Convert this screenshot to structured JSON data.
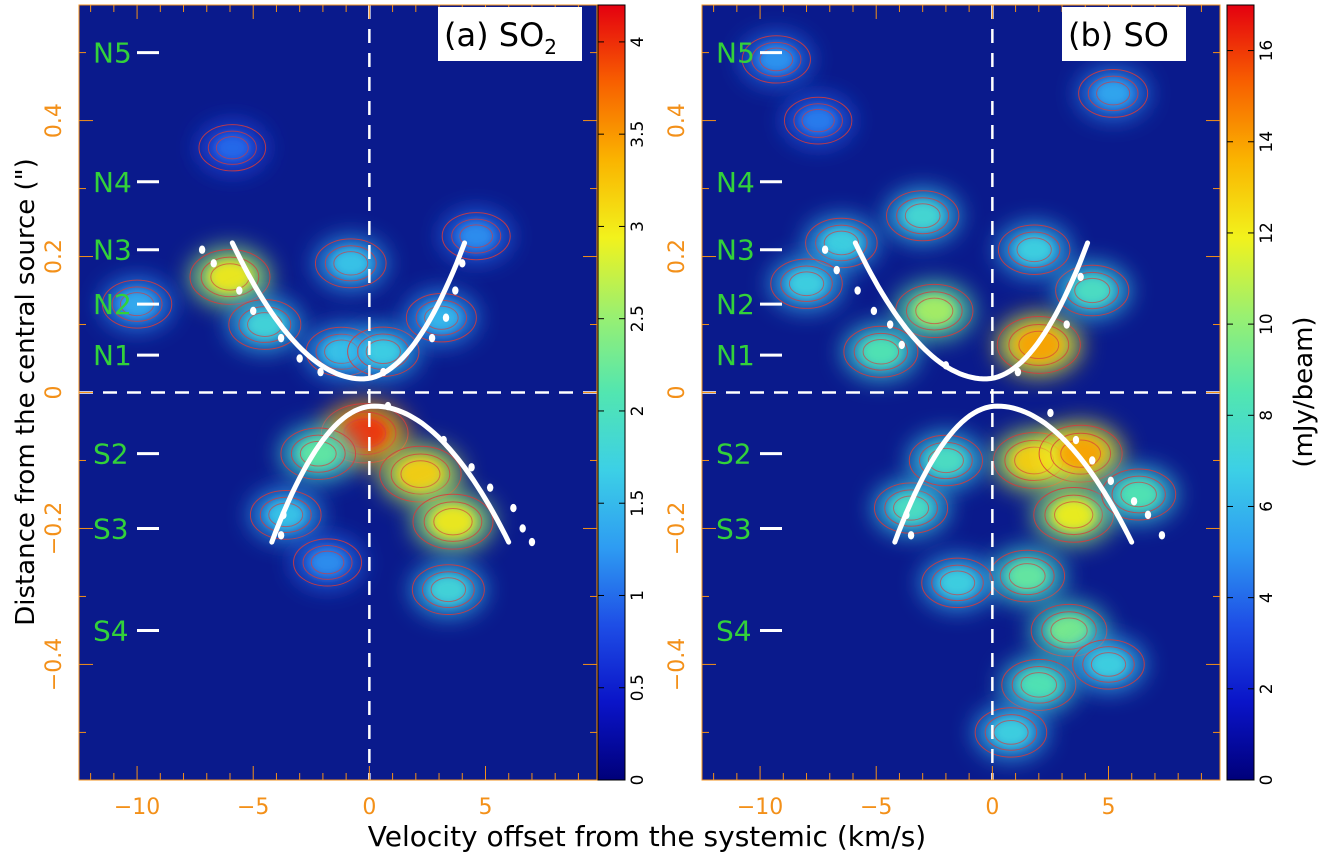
{
  "chart_data": {
    "type": "heatmap",
    "xlabel": "Velocity offset from the systemic (km/s)",
    "ylabel": "Distance from the central source (\")",
    "xlim": [
      -12.5,
      9.8
    ],
    "ylim": [
      -0.57,
      0.57
    ],
    "x_ticks": [
      -10,
      -5,
      0,
      5
    ],
    "x_tick_labels": [
      "−10",
      "−5",
      "0",
      "5"
    ],
    "y_ticks": [
      -0.4,
      -0.2,
      0,
      0.2,
      0.4
    ],
    "y_tick_labels": [
      "−0.4",
      "−0.2",
      "0",
      "0.2",
      "0.4"
    ],
    "position_markers": [
      {
        "label": "N5",
        "y": 0.5
      },
      {
        "label": "N4",
        "y": 0.31
      },
      {
        "label": "N3",
        "y": 0.21
      },
      {
        "label": "N2",
        "y": 0.13
      },
      {
        "label": "N1",
        "y": 0.055
      },
      {
        "label": "S2",
        "y": -0.09
      },
      {
        "label": "S3",
        "y": -0.2
      },
      {
        "label": "S4",
        "y": -0.35
      }
    ],
    "panels": [
      {
        "id": "a",
        "title_prefix": "(a) SO",
        "title_sub": "2",
        "colorbar": {
          "unit": "",
          "range": [
            0,
            4.2
          ],
          "ticks": [
            0,
            0.5,
            1,
            1.5,
            2,
            2.5,
            3,
            3.5,
            4
          ],
          "tick_labels": [
            "0",
            "0.5",
            "1",
            "1.5",
            "2",
            "2.5",
            "3",
            "3.5",
            "4"
          ]
        },
        "emission_blobs": [
          {
            "x": -6.0,
            "y": 0.17,
            "value": 3.0
          },
          {
            "x": -4.5,
            "y": 0.1,
            "value": 1.8
          },
          {
            "x": -1.2,
            "y": 0.06,
            "value": 1.6
          },
          {
            "x": 0.6,
            "y": 0.06,
            "value": 1.7
          },
          {
            "x": -0.8,
            "y": 0.19,
            "value": 1.6
          },
          {
            "x": 3.1,
            "y": 0.11,
            "value": 1.5
          },
          {
            "x": 4.6,
            "y": 0.23,
            "value": 1.2
          },
          {
            "x": -10.0,
            "y": 0.13,
            "value": 1.4
          },
          {
            "x": -0.2,
            "y": -0.06,
            "value": 4.0
          },
          {
            "x": 2.2,
            "y": -0.12,
            "value": 3.2
          },
          {
            "x": 3.6,
            "y": -0.19,
            "value": 3.0
          },
          {
            "x": -2.2,
            "y": -0.09,
            "value": 2.2
          },
          {
            "x": -3.6,
            "y": -0.18,
            "value": 1.6
          },
          {
            "x": 3.4,
            "y": -0.29,
            "value": 1.8
          },
          {
            "x": -1.8,
            "y": -0.25,
            "value": 1.2
          },
          {
            "x": -5.9,
            "y": 0.36,
            "value": 1.0
          }
        ],
        "model_curve_north": {
          "x_left": -5.9,
          "x_right": 4.1,
          "vertex_x": -0.3,
          "vertex_y": 0.02,
          "y_end": 0.22
        },
        "model_curve_south": {
          "x_left": -4.2,
          "x_right": 6.0,
          "vertex_x": 0.2,
          "vertex_y": -0.02,
          "y_end": -0.22
        },
        "data_points": [
          {
            "x": -7.2,
            "y": 0.21
          },
          {
            "x": -6.7,
            "y": 0.19
          },
          {
            "x": -5.6,
            "y": 0.15
          },
          {
            "x": -5.0,
            "y": 0.12
          },
          {
            "x": -3.8,
            "y": 0.08
          },
          {
            "x": -3.0,
            "y": 0.05
          },
          {
            "x": -2.1,
            "y": 0.03
          },
          {
            "x": 0.6,
            "y": 0.03
          },
          {
            "x": 2.7,
            "y": 0.08
          },
          {
            "x": 3.3,
            "y": 0.11
          },
          {
            "x": 3.7,
            "y": 0.15
          },
          {
            "x": 4.0,
            "y": 0.19
          },
          {
            "x": -3.7,
            "y": -0.18
          },
          {
            "x": -3.8,
            "y": -0.21
          },
          {
            "x": 0.8,
            "y": -0.02
          },
          {
            "x": 3.2,
            "y": -0.07
          },
          {
            "x": 4.4,
            "y": -0.11
          },
          {
            "x": 5.2,
            "y": -0.14
          },
          {
            "x": 6.2,
            "y": -0.17
          },
          {
            "x": 6.6,
            "y": -0.2
          },
          {
            "x": 7.0,
            "y": -0.22
          }
        ]
      },
      {
        "id": "b",
        "title_prefix": "(b) SO",
        "title_sub": "",
        "colorbar": {
          "unit": "(mJy/beam)",
          "range": [
            0,
            17
          ],
          "ticks": [
            0,
            2,
            4,
            6,
            8,
            10,
            12,
            14,
            16
          ],
          "tick_labels": [
            "0",
            "2",
            "4",
            "6",
            "8",
            "10",
            "12",
            "14",
            "16"
          ]
        },
        "emission_blobs": [
          {
            "x": -2.5,
            "y": 0.12,
            "value": 10.5
          },
          {
            "x": 2.0,
            "y": 0.07,
            "value": 14.0
          },
          {
            "x": -6.5,
            "y": 0.22,
            "value": 7.0
          },
          {
            "x": -3.0,
            "y": 0.26,
            "value": 7.5
          },
          {
            "x": -8.0,
            "y": 0.16,
            "value": 7.0
          },
          {
            "x": -4.8,
            "y": 0.06,
            "value": 8.5
          },
          {
            "x": 4.3,
            "y": 0.15,
            "value": 8.0
          },
          {
            "x": 1.8,
            "y": 0.21,
            "value": 7.0
          },
          {
            "x": -9.3,
            "y": 0.49,
            "value": 5.0
          },
          {
            "x": 5.2,
            "y": 0.44,
            "value": 5.5
          },
          {
            "x": -7.5,
            "y": 0.4,
            "value": 4.5
          },
          {
            "x": 1.8,
            "y": -0.1,
            "value": 13.0
          },
          {
            "x": 3.8,
            "y": -0.09,
            "value": 14.0
          },
          {
            "x": 3.5,
            "y": -0.18,
            "value": 12.0
          },
          {
            "x": -3.5,
            "y": -0.17,
            "value": 8.0
          },
          {
            "x": -2.0,
            "y": -0.1,
            "value": 8.0
          },
          {
            "x": 6.3,
            "y": -0.15,
            "value": 8.5
          },
          {
            "x": 1.5,
            "y": -0.27,
            "value": 9.0
          },
          {
            "x": 3.3,
            "y": -0.35,
            "value": 9.5
          },
          {
            "x": 2.0,
            "y": -0.43,
            "value": 8.5
          },
          {
            "x": 0.8,
            "y": -0.5,
            "value": 7.0
          },
          {
            "x": 5.0,
            "y": -0.4,
            "value": 7.0
          },
          {
            "x": -1.5,
            "y": -0.28,
            "value": 7.0
          }
        ],
        "model_curve_north": {
          "x_left": -5.9,
          "x_right": 4.1,
          "vertex_x": -0.3,
          "vertex_y": 0.02,
          "y_end": 0.22
        },
        "model_curve_south": {
          "x_left": -4.2,
          "x_right": 6.0,
          "vertex_x": 0.2,
          "vertex_y": -0.02,
          "y_end": -0.22
        },
        "data_points": [
          {
            "x": -7.2,
            "y": 0.21
          },
          {
            "x": -6.7,
            "y": 0.18
          },
          {
            "x": -5.8,
            "y": 0.15
          },
          {
            "x": -5.1,
            "y": 0.12
          },
          {
            "x": -4.4,
            "y": 0.1
          },
          {
            "x": -3.9,
            "y": 0.07
          },
          {
            "x": -2.0,
            "y": 0.04
          },
          {
            "x": 1.1,
            "y": 0.03
          },
          {
            "x": 3.2,
            "y": 0.1
          },
          {
            "x": 3.8,
            "y": 0.17
          },
          {
            "x": -3.5,
            "y": -0.21
          },
          {
            "x": -3.7,
            "y": -0.18
          },
          {
            "x": 2.5,
            "y": -0.03
          },
          {
            "x": 3.6,
            "y": -0.07
          },
          {
            "x": 4.3,
            "y": -0.1
          },
          {
            "x": 5.1,
            "y": -0.13
          },
          {
            "x": 6.1,
            "y": -0.16
          },
          {
            "x": 6.7,
            "y": -0.18
          },
          {
            "x": 7.3,
            "y": -0.21
          }
        ]
      }
    ]
  }
}
